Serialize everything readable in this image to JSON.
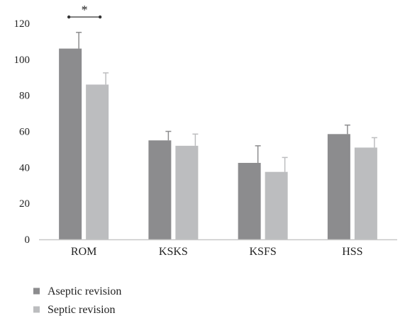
{
  "chart_data": {
    "type": "bar",
    "categories": [
      "ROM",
      "KSKS",
      "KSFS",
      "HSS"
    ],
    "series": [
      {
        "name": "Aseptic revision",
        "color": "#8c8c8e",
        "values": [
          106,
          55,
          42.5,
          58.5
        ],
        "error": [
          9,
          5,
          9.5,
          5
        ]
      },
      {
        "name": "Septic revision",
        "color": "#bcbdbf",
        "values": [
          86,
          52,
          37.5,
          51
        ],
        "error": [
          6.5,
          6.5,
          8,
          5.5
        ]
      }
    ],
    "ylim": [
      0,
      120
    ],
    "yticks": [
      0,
      20,
      40,
      60,
      80,
      100,
      120
    ],
    "ytick_labels": [
      "0",
      "20",
      "40",
      "60",
      "80",
      "100",
      "120"
    ],
    "title": "",
    "xlabel": "",
    "ylabel": "",
    "grid": false,
    "legend_position": "bottom-left",
    "annotations": [
      {
        "text": "*",
        "category": "ROM",
        "between_series": [
          0,
          1
        ]
      }
    ]
  }
}
